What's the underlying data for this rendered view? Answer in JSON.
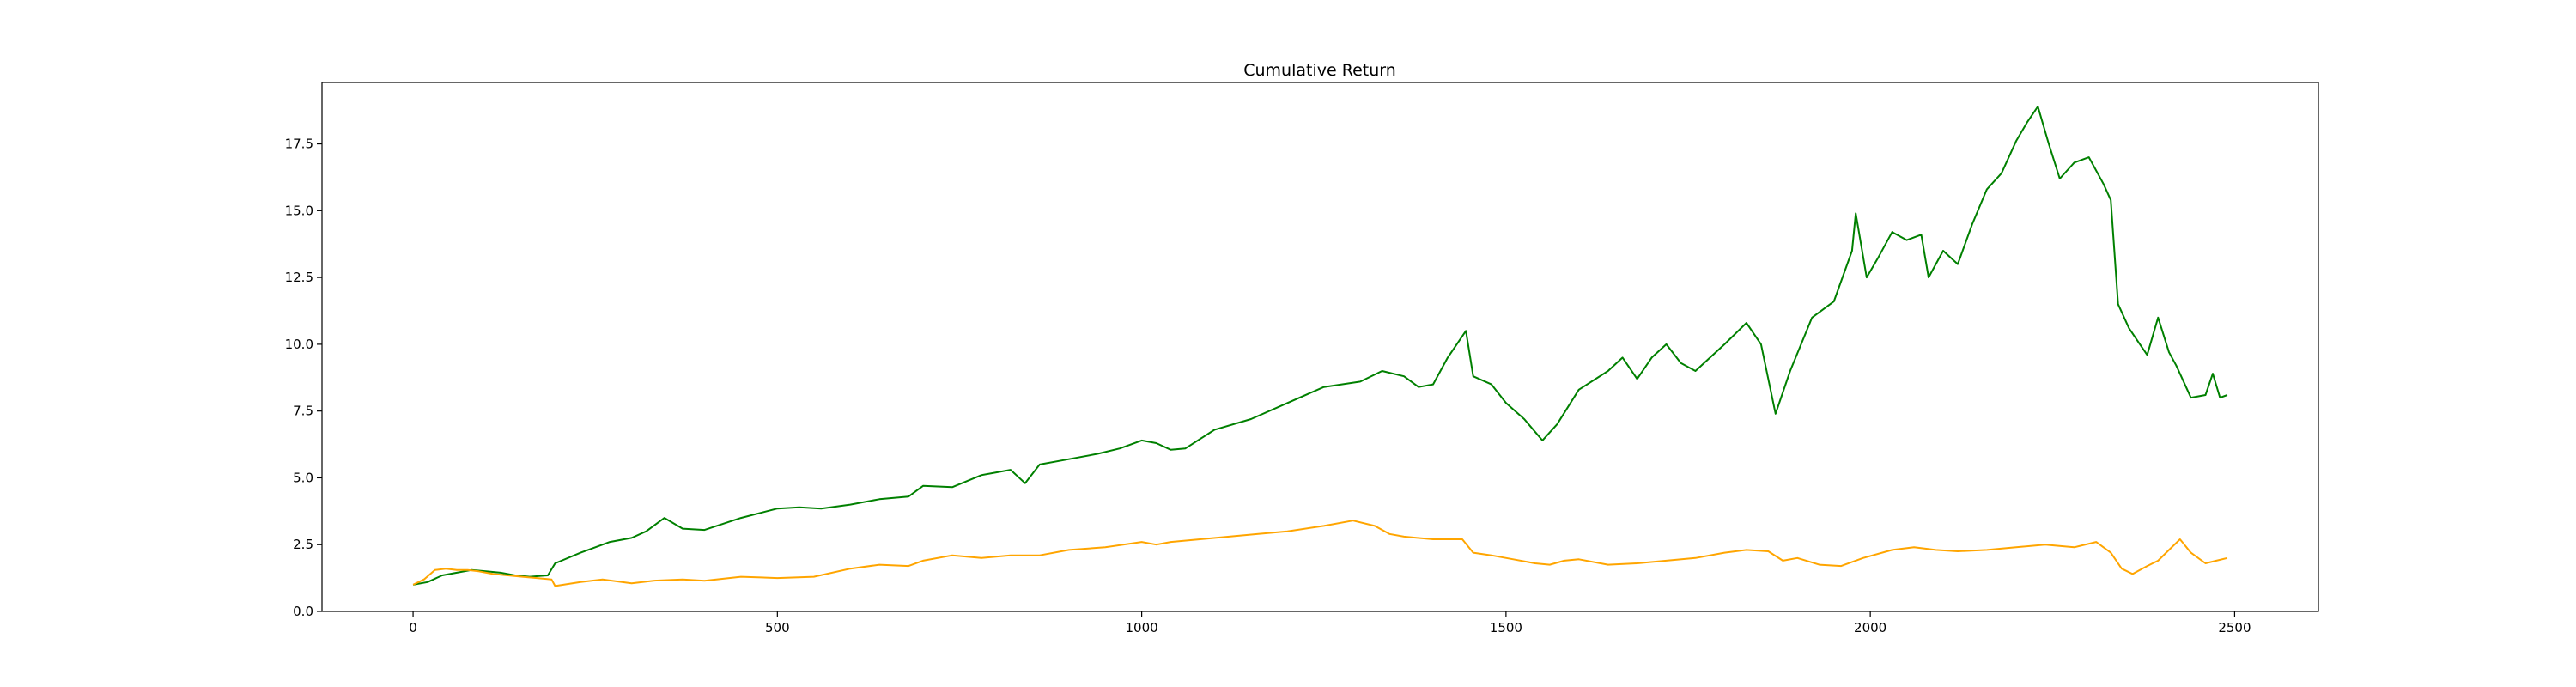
{
  "chart_data": {
    "type": "line",
    "title": "Cumulative Return",
    "xlabel": "",
    "ylabel": "",
    "xlim": [
      -125,
      2615
    ],
    "ylim": [
      0,
      19.8
    ],
    "grid": false,
    "legend": "none",
    "x_ticks": [
      0,
      500,
      1000,
      1500,
      2000,
      2500
    ],
    "x_tick_labels": [
      "0",
      "500",
      "1000",
      "1500",
      "2000",
      "2500"
    ],
    "y_ticks": [
      0.0,
      2.5,
      5.0,
      7.5,
      10.0,
      12.5,
      15.0,
      17.5
    ],
    "y_tick_labels": [
      "0.0",
      "2.5",
      "5.0",
      "7.5",
      "10.0",
      "12.5",
      "15.0",
      "17.5"
    ],
    "series": [
      {
        "color": "#008000",
        "points": [
          [
            0,
            1.0
          ],
          [
            20,
            1.1
          ],
          [
            40,
            1.35
          ],
          [
            60,
            1.45
          ],
          [
            80,
            1.55
          ],
          [
            100,
            1.5
          ],
          [
            120,
            1.45
          ],
          [
            140,
            1.35
          ],
          [
            160,
            1.3
          ],
          [
            185,
            1.35
          ],
          [
            195,
            1.8
          ],
          [
            230,
            2.2
          ],
          [
            270,
            2.6
          ],
          [
            300,
            2.75
          ],
          [
            320,
            3.0
          ],
          [
            345,
            3.5
          ],
          [
            370,
            3.1
          ],
          [
            400,
            3.05
          ],
          [
            450,
            3.5
          ],
          [
            500,
            3.85
          ],
          [
            530,
            3.9
          ],
          [
            560,
            3.85
          ],
          [
            600,
            4.0
          ],
          [
            640,
            4.2
          ],
          [
            680,
            4.3
          ],
          [
            700,
            4.7
          ],
          [
            740,
            4.65
          ],
          [
            780,
            5.1
          ],
          [
            820,
            5.3
          ],
          [
            840,
            4.8
          ],
          [
            860,
            5.5
          ],
          [
            900,
            5.7
          ],
          [
            940,
            5.9
          ],
          [
            970,
            6.1
          ],
          [
            1000,
            6.4
          ],
          [
            1020,
            6.3
          ],
          [
            1040,
            6.05
          ],
          [
            1060,
            6.1
          ],
          [
            1100,
            6.8
          ],
          [
            1150,
            7.2
          ],
          [
            1200,
            7.8
          ],
          [
            1250,
            8.4
          ],
          [
            1300,
            8.6
          ],
          [
            1330,
            9.0
          ],
          [
            1360,
            8.8
          ],
          [
            1380,
            8.4
          ],
          [
            1400,
            8.5
          ],
          [
            1420,
            9.5
          ],
          [
            1445,
            10.5
          ],
          [
            1455,
            8.8
          ],
          [
            1480,
            8.5
          ],
          [
            1500,
            7.8
          ],
          [
            1525,
            7.2
          ],
          [
            1550,
            6.4
          ],
          [
            1570,
            7.0
          ],
          [
            1600,
            8.3
          ],
          [
            1640,
            9.0
          ],
          [
            1660,
            9.5
          ],
          [
            1680,
            8.7
          ],
          [
            1700,
            9.5
          ],
          [
            1720,
            10.0
          ],
          [
            1740,
            9.3
          ],
          [
            1760,
            9.0
          ],
          [
            1780,
            9.5
          ],
          [
            1800,
            10.0
          ],
          [
            1830,
            10.8
          ],
          [
            1850,
            10.0
          ],
          [
            1870,
            7.4
          ],
          [
            1890,
            9.0
          ],
          [
            1920,
            11.0
          ],
          [
            1950,
            11.6
          ],
          [
            1975,
            13.5
          ],
          [
            1980,
            14.9
          ],
          [
            1995,
            12.5
          ],
          [
            2010,
            13.2
          ],
          [
            2030,
            14.2
          ],
          [
            2050,
            13.9
          ],
          [
            2070,
            14.1
          ],
          [
            2080,
            12.5
          ],
          [
            2100,
            13.5
          ],
          [
            2120,
            13.0
          ],
          [
            2140,
            14.5
          ],
          [
            2160,
            15.8
          ],
          [
            2180,
            16.4
          ],
          [
            2200,
            17.6
          ],
          [
            2215,
            18.3
          ],
          [
            2230,
            18.9
          ],
          [
            2245,
            17.5
          ],
          [
            2260,
            16.2
          ],
          [
            2280,
            16.8
          ],
          [
            2300,
            17.0
          ],
          [
            2320,
            16.0
          ],
          [
            2330,
            15.4
          ],
          [
            2340,
            11.5
          ],
          [
            2355,
            10.6
          ],
          [
            2370,
            10.0
          ],
          [
            2380,
            9.6
          ],
          [
            2395,
            11.0
          ],
          [
            2410,
            9.7
          ],
          [
            2420,
            9.2
          ],
          [
            2430,
            8.6
          ],
          [
            2440,
            8.0
          ],
          [
            2460,
            8.1
          ],
          [
            2470,
            8.9
          ],
          [
            2480,
            8.0
          ],
          [
            2490,
            8.1
          ]
        ]
      },
      {
        "color": "#FFA500",
        "points": [
          [
            0,
            1.0
          ],
          [
            15,
            1.2
          ],
          [
            30,
            1.55
          ],
          [
            45,
            1.6
          ],
          [
            60,
            1.55
          ],
          [
            75,
            1.55
          ],
          [
            90,
            1.5
          ],
          [
            110,
            1.4
          ],
          [
            130,
            1.35
          ],
          [
            150,
            1.3
          ],
          [
            170,
            1.25
          ],
          [
            190,
            1.2
          ],
          [
            195,
            0.95
          ],
          [
            230,
            1.1
          ],
          [
            260,
            1.2
          ],
          [
            300,
            1.05
          ],
          [
            330,
            1.15
          ],
          [
            370,
            1.2
          ],
          [
            400,
            1.15
          ],
          [
            450,
            1.3
          ],
          [
            500,
            1.25
          ],
          [
            550,
            1.3
          ],
          [
            600,
            1.6
          ],
          [
            640,
            1.75
          ],
          [
            680,
            1.7
          ],
          [
            700,
            1.9
          ],
          [
            740,
            2.1
          ],
          [
            780,
            2.0
          ],
          [
            820,
            2.1
          ],
          [
            860,
            2.1
          ],
          [
            900,
            2.3
          ],
          [
            950,
            2.4
          ],
          [
            1000,
            2.6
          ],
          [
            1020,
            2.5
          ],
          [
            1040,
            2.6
          ],
          [
            1080,
            2.7
          ],
          [
            1120,
            2.8
          ],
          [
            1160,
            2.9
          ],
          [
            1200,
            3.0
          ],
          [
            1250,
            3.2
          ],
          [
            1290,
            3.4
          ],
          [
            1320,
            3.2
          ],
          [
            1340,
            2.9
          ],
          [
            1360,
            2.8
          ],
          [
            1400,
            2.7
          ],
          [
            1440,
            2.7
          ],
          [
            1455,
            2.2
          ],
          [
            1480,
            2.1
          ],
          [
            1510,
            1.95
          ],
          [
            1540,
            1.8
          ],
          [
            1560,
            1.75
          ],
          [
            1580,
            1.9
          ],
          [
            1600,
            1.95
          ],
          [
            1640,
            1.75
          ],
          [
            1680,
            1.8
          ],
          [
            1720,
            1.9
          ],
          [
            1760,
            2.0
          ],
          [
            1800,
            2.2
          ],
          [
            1830,
            2.3
          ],
          [
            1860,
            2.25
          ],
          [
            1880,
            1.9
          ],
          [
            1900,
            2.0
          ],
          [
            1930,
            1.75
          ],
          [
            1960,
            1.7
          ],
          [
            1990,
            2.0
          ],
          [
            2030,
            2.3
          ],
          [
            2060,
            2.4
          ],
          [
            2090,
            2.3
          ],
          [
            2120,
            2.25
          ],
          [
            2160,
            2.3
          ],
          [
            2200,
            2.4
          ],
          [
            2240,
            2.5
          ],
          [
            2280,
            2.4
          ],
          [
            2310,
            2.6
          ],
          [
            2330,
            2.2
          ],
          [
            2345,
            1.6
          ],
          [
            2360,
            1.4
          ],
          [
            2380,
            1.7
          ],
          [
            2395,
            1.9
          ],
          [
            2410,
            2.3
          ],
          [
            2425,
            2.7
          ],
          [
            2440,
            2.2
          ],
          [
            2460,
            1.8
          ],
          [
            2475,
            1.9
          ],
          [
            2490,
            2.0
          ]
        ]
      }
    ]
  }
}
